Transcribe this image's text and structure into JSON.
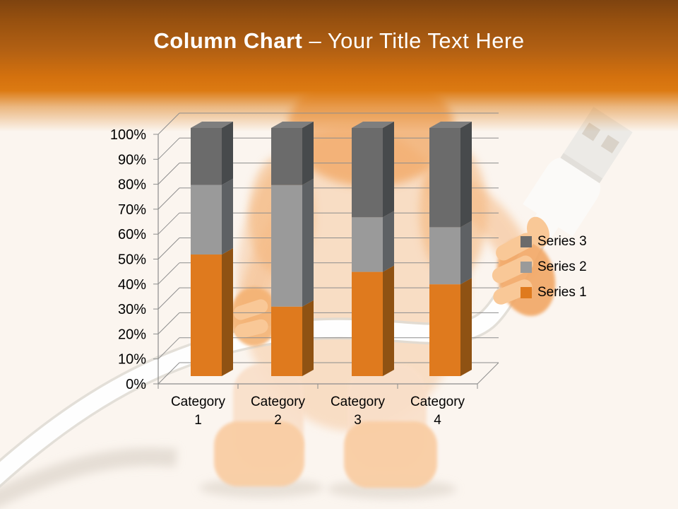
{
  "slide": {
    "title": {
      "bold": "Column Chart",
      "separator": "–",
      "rest": "Your Title Text Here"
    },
    "background": {
      "illustration": "3d-orange-figure-holding-usb-cable",
      "banner_color_top": "#7E430F",
      "banner_color_bottom": "#DC7A12"
    }
  },
  "chart_data": {
    "type": "bar",
    "subtype": "stacked-100-percent-3d",
    "title": "",
    "xlabel": "",
    "ylabel": "",
    "grid": true,
    "legend_position": "right",
    "categories": [
      "Category 1",
      "Category 2",
      "Category 3",
      "Category 4"
    ],
    "series": [
      {
        "name": "Series 1",
        "color": "#DF7A1E",
        "side_color": "#8F5213",
        "top_color": "#BC6B1A",
        "values": [
          49,
          28,
          42,
          37
        ]
      },
      {
        "name": "Series 2",
        "color": "#9A9A9A",
        "side_color": "#5E6164",
        "top_color": "#ACACAC",
        "values": [
          28,
          49,
          22,
          23
        ]
      },
      {
        "name": "Series 3",
        "color": "#6B6B6B",
        "side_color": "#474A4C",
        "top_color": "#7E7E7E",
        "values": [
          23,
          23,
          36,
          40
        ]
      }
    ],
    "y_axis": {
      "min": 0,
      "max": 100,
      "ticks": [
        "0%",
        "10%",
        "20%",
        "30%",
        "40%",
        "50%",
        "60%",
        "70%",
        "80%",
        "90%",
        "100%"
      ]
    },
    "legend_entries": [
      "Series 3",
      "Series 2",
      "Series 1"
    ],
    "axis_color": "#8D8D8D",
    "label_color": "#000000"
  }
}
